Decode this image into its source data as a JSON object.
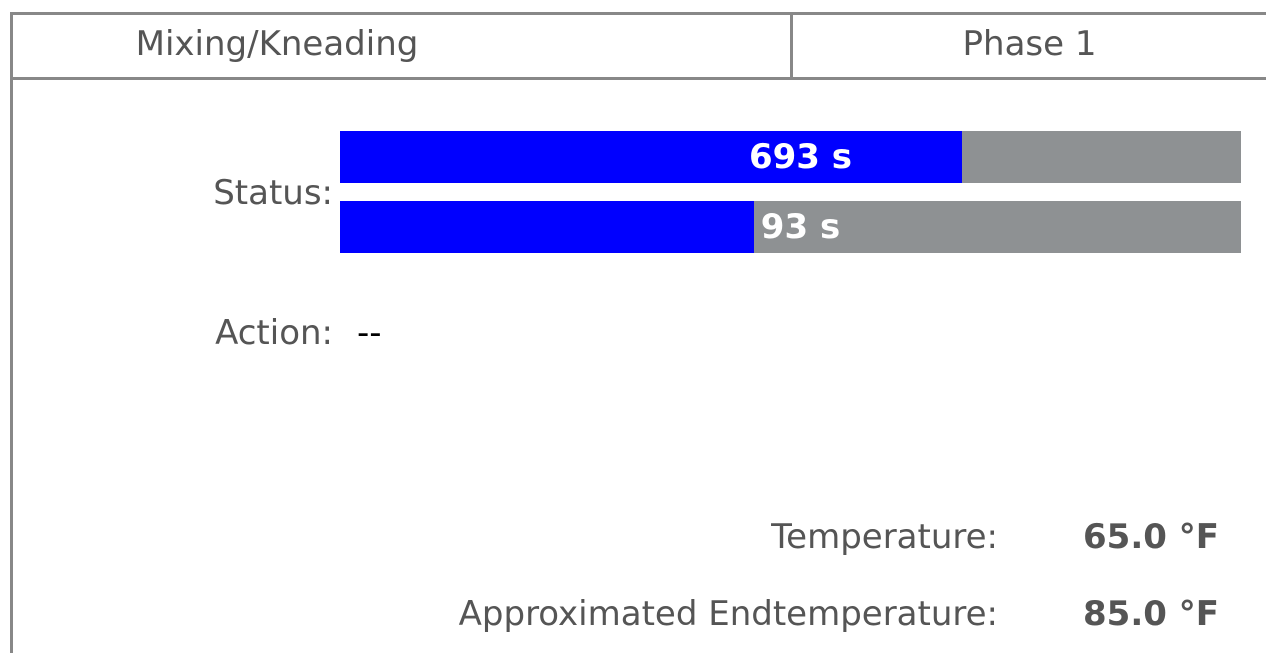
{
  "header": {
    "title": "Mixing/Kneading",
    "phase": "Phase 1"
  },
  "status": {
    "label": "Status:",
    "bars": [
      {
        "value_label": "693 s",
        "percent": 69
      },
      {
        "value_label": "93 s",
        "percent": 46
      }
    ]
  },
  "action": {
    "label": "Action:",
    "value": "--"
  },
  "readings": [
    {
      "label": "Temperature:",
      "value": "65.0 °F"
    },
    {
      "label": "Approximated Endtemperature:",
      "value": "85.0 °F"
    }
  ]
}
